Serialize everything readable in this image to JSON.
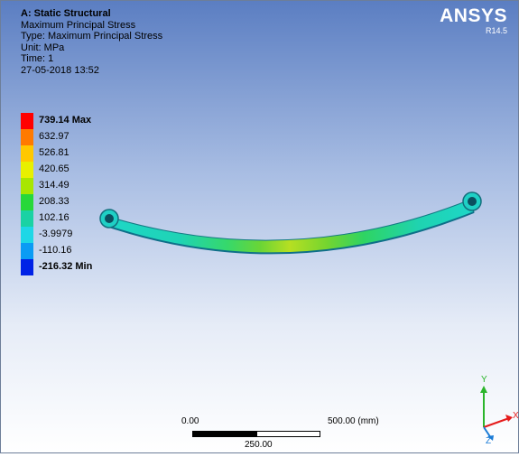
{
  "header": {
    "analysis": "A: Static Structural",
    "result": "Maximum Principal Stress",
    "type": "Type: Maximum Principal Stress",
    "unit": "Unit: MPa",
    "time": "Time: 1",
    "date": "27-05-2018 13:52"
  },
  "brand": {
    "name": "ANSYS",
    "version": "R14.5"
  },
  "legend": {
    "items": [
      {
        "label": "739.14 Max",
        "color": "#ff0000",
        "bold": true
      },
      {
        "label": "632.97",
        "color": "#ff7a00",
        "bold": false
      },
      {
        "label": "526.81",
        "color": "#ffc800",
        "bold": false
      },
      {
        "label": "420.65",
        "color": "#e8f000",
        "bold": false
      },
      {
        "label": "314.49",
        "color": "#a8e600",
        "bold": false
      },
      {
        "label": "208.33",
        "color": "#27d83a",
        "bold": false
      },
      {
        "label": "102.16",
        "color": "#1ad2a4",
        "bold": false
      },
      {
        "label": "-3.9979",
        "color": "#1ed7e6",
        "bold": false
      },
      {
        "label": "-110.16",
        "color": "#0b9cf4",
        "bold": false
      },
      {
        "label": "-216.32 Min",
        "color": "#0022e6",
        "bold": true
      }
    ]
  },
  "scale_bar": {
    "left_label": "0.00",
    "mid_label": "250.00",
    "right_label": "500.00 (mm)"
  },
  "axes": {
    "x": "X",
    "y": "Y",
    "z": "Z"
  }
}
